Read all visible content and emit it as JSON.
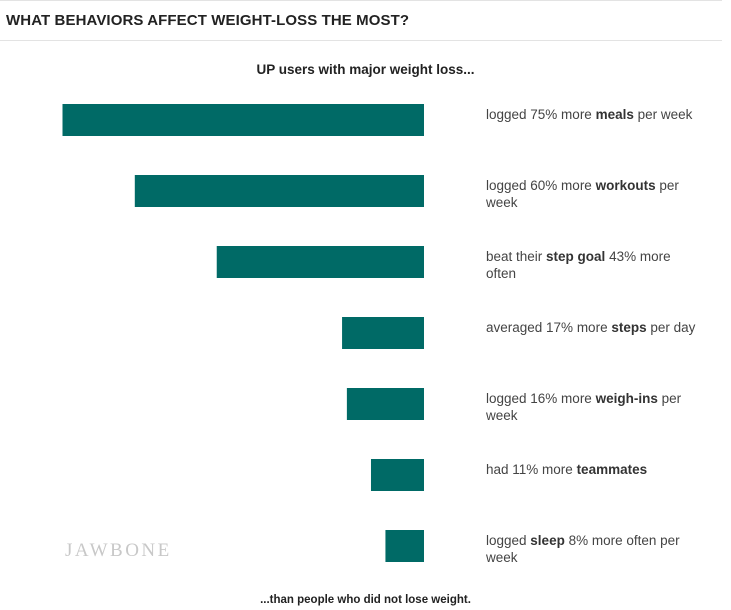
{
  "header": {
    "title": "WHAT BEHAVIORS AFFECT WEIGHT-LOSS THE MOST?"
  },
  "watermark": "JAWBONE",
  "chart_data": {
    "type": "bar",
    "orientation": "horizontal",
    "title": "UP users with major weight loss...",
    "footnote": "...than people who did not lose weight.",
    "bar_color": "#006a66",
    "categories": [
      "logged 75% more meals per week",
      "logged 60% more workouts per week",
      "beat their step goal 43% more often",
      "averaged 17% more steps per day",
      "logged 16% more weigh-ins per week",
      "had 11% more teammates",
      "logged sleep 8% more often per week"
    ],
    "values": [
      75,
      60,
      43,
      17,
      16,
      11,
      8
    ],
    "labels": [
      {
        "pre": "logged 75% more ",
        "bold": "meals",
        "post": " per week"
      },
      {
        "pre": "logged 60% more ",
        "bold": "workouts",
        "post": " per week"
      },
      {
        "pre": "beat their ",
        "bold": "step goal",
        "post": " 43% more often"
      },
      {
        "pre": "averaged 17% more ",
        "bold": "steps",
        "post": " per day"
      },
      {
        "pre": "logged 16% more ",
        "bold": "weigh-ins",
        "post": " per week"
      },
      {
        "pre": "had 11% more ",
        "bold": "teammates",
        "post": ""
      },
      {
        "pre": "logged ",
        "bold": "sleep",
        "post": " 8% more often per week"
      }
    ],
    "unit": "% more",
    "grid": false,
    "legend": "none"
  }
}
